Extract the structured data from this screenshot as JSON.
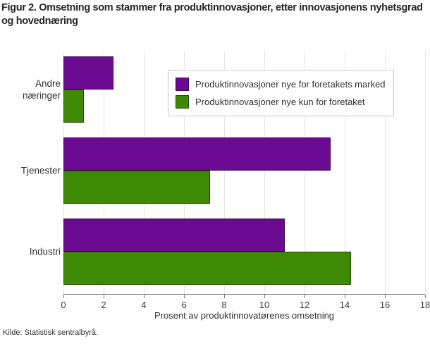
{
  "title": "Figur 2. Omsetning som stammer fra produktinnovasjoner, etter innovasjonens nyhetsgrad og hovednæring",
  "source": "Kilde: Statistisk sentralbyrå.",
  "chart_data": {
    "type": "bar",
    "orientation": "horizontal",
    "title": "Figur 2. Omsetning som stammer fra produktinnovasjoner, etter innovasjonens nyhetsgrad og hovednæring",
    "categories": [
      "Andre næringer",
      "Tjenester",
      "Industri"
    ],
    "series": [
      {
        "name": "Produktinnovasjoner nye for foretakets marked",
        "color": "#6a0b91",
        "values": [
          2.5,
          13.3,
          11.0
        ]
      },
      {
        "name": "Produktinnovasjoner nye kun for foretaket",
        "color": "#3f8a05",
        "values": [
          1.0,
          7.3,
          14.3
        ]
      }
    ],
    "xlabel": "Prosent av produktinnovatørenes omsetning",
    "ylabel": "",
    "xlim": [
      0,
      18
    ],
    "xticks": [
      0,
      2,
      4,
      6,
      8,
      10,
      12,
      14,
      16,
      18
    ],
    "grid": true,
    "gridline_color": "#e4e4e4",
    "legend_position": "top-right"
  }
}
